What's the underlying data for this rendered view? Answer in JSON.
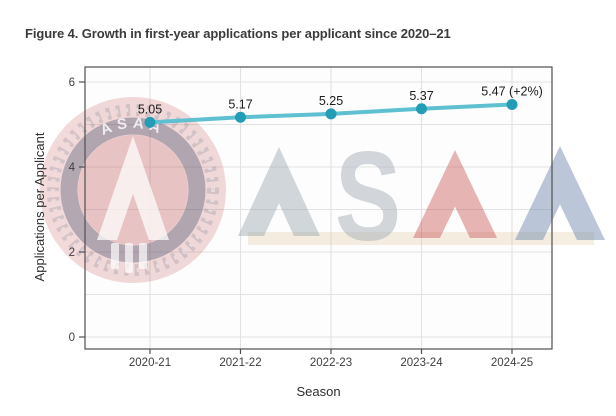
{
  "title": {
    "text": "Figure 4. Growth in first-year applications per applicant since 2020–21"
  },
  "watermark": {
    "badge_text": "ASAA",
    "letters": [
      {
        "char": "A",
        "color": "#9aa6ae",
        "opacity": 0.45
      },
      {
        "char": "S",
        "color": "#a8b0b7",
        "opacity": 0.5
      },
      {
        "char": "A",
        "color": "#c33d3d",
        "opacity": 0.38
      },
      {
        "char": "A",
        "color": "#5c7aa4",
        "opacity": 0.42
      }
    ]
  },
  "chart_data": {
    "type": "line",
    "title": "",
    "xlabel": "Season",
    "ylabel": "Applications per Applicant",
    "categories": [
      "2020-21",
      "2021-22",
      "2022-23",
      "2023-24",
      "2024-25"
    ],
    "series": [
      {
        "name": "Applications per Applicant",
        "values": [
          5.05,
          5.17,
          5.25,
          5.37,
          5.47
        ]
      }
    ],
    "point_labels": [
      "5.05",
      "5.17",
      "5.25",
      "5.37",
      "5.47 (+2%)"
    ],
    "ylim": [
      0,
      6.35
    ],
    "yticks": [
      0,
      2,
      4,
      6
    ],
    "grid": true,
    "legend": "none",
    "colors": {
      "line": "#5fc0d2",
      "marker": "#259cb6",
      "gridline": "#e2e2e2",
      "panel_border": "#4f4f4f",
      "tick_label": "#3f3f3f",
      "axis_title": "#2f2f2f",
      "point_label": "#1c1c1c"
    }
  }
}
